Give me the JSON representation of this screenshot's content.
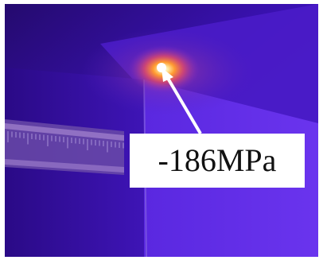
{
  "annotation": {
    "text": "-186MPa"
  },
  "colors": {
    "background_purple": "#3a10b8",
    "hot_spot": "#fff4c0",
    "glow_orange": "#ff8a2a",
    "arrow": "#ffffff",
    "label_background": "#ffffff"
  }
}
